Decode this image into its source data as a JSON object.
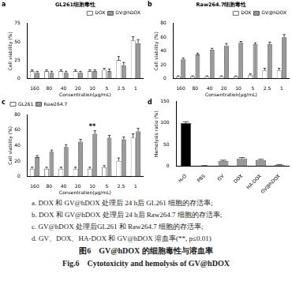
{
  "chart_data": [
    {
      "type": "bar",
      "panel": "a",
      "title": "GL261细胞毒性",
      "categories": [
        "160",
        "80",
        "40",
        "20",
        "10",
        "5",
        "2.5",
        "1"
      ],
      "series": [
        {
          "name": "DOX",
          "color": "#ffffff",
          "values": [
            10,
            10,
            10,
            10,
            10,
            12,
            25,
            52
          ],
          "errors": [
            2,
            2,
            2,
            2,
            2,
            2,
            5,
            5
          ]
        },
        {
          "name": "GV@hDOX",
          "color": "#9a9a9a",
          "values": [
            8,
            8,
            8,
            8,
            10,
            10,
            18,
            48
          ],
          "errors": [
            2,
            2,
            2,
            2,
            2,
            3,
            4,
            5
          ]
        }
      ],
      "x_label": "Consentration(μg/mL)",
      "y_label": "Cell viability (%)",
      "ylim": [
        0,
        75
      ],
      "yticks": [
        0,
        25,
        50,
        75
      ],
      "legend": "top-right",
      "grid": false
    },
    {
      "type": "bar",
      "panel": "b",
      "title": "Raw264.7细胞毒性",
      "categories": [
        "160",
        "80",
        "40",
        "20",
        "10",
        "5",
        "2.5",
        "1"
      ],
      "series": [
        {
          "name": "DOX",
          "color": "#ffffff",
          "values": [
            3,
            3,
            3,
            3,
            3,
            5,
            12,
            12
          ],
          "errors": [
            1,
            1,
            1,
            1,
            1,
            2,
            3,
            3
          ]
        },
        {
          "name": "GV@hDOX",
          "color": "#9a9a9a",
          "values": [
            28,
            35,
            42,
            48,
            52,
            50,
            50,
            60
          ],
          "errors": [
            2,
            2,
            2,
            3,
            2,
            2,
            3,
            4
          ]
        }
      ],
      "x_label": "Consentration(μg/mL)",
      "y_label": "Cell viability (%)",
      "ylim": [
        0,
        80
      ],
      "yticks": [
        0,
        20,
        40,
        60,
        80
      ],
      "legend": "top-right",
      "grid": false
    },
    {
      "type": "bar",
      "panel": "c",
      "categories": [
        "160",
        "80",
        "40",
        "20",
        "10",
        "5",
        "2.5",
        "1"
      ],
      "series": [
        {
          "name": "GL261",
          "color": "#ffffff",
          "values": [
            10,
            10,
            10,
            10,
            10,
            12,
            20,
            50
          ],
          "errors": [
            2,
            2,
            2,
            2,
            2,
            2,
            4,
            5
          ]
        },
        {
          "name": "Raw264.7",
          "color": "#9a9a9a",
          "values": [
            25,
            32,
            38,
            45,
            55,
            50,
            48,
            58
          ],
          "errors": [
            2,
            2,
            3,
            3,
            4,
            3,
            3,
            4
          ]
        }
      ],
      "x_label": "Consentration(μg/mL)",
      "y_label": "Cell viability (%)",
      "ylim": [
        0,
        80
      ],
      "yticks": [
        0,
        20,
        40,
        60,
        80
      ],
      "legend": "top-left",
      "grid": false,
      "annotations": [
        {
          "text": "**",
          "category": "10"
        }
      ]
    },
    {
      "type": "bar",
      "panel": "d",
      "categories": [
        "H₂O",
        "PBS",
        "GV",
        "DOX",
        "HA-DOX",
        "GV@hDOX"
      ],
      "values": [
        100,
        1,
        12,
        18,
        14,
        3
      ],
      "errors": [
        3,
        0.5,
        2,
        2,
        2,
        1
      ],
      "colors": [
        "#000000",
        "#9a9a9a",
        "#9a9a9a",
        "#9a9a9a",
        "#9a9a9a",
        "#9a9a9a"
      ],
      "y_label": "Hemolysis ratio (%)",
      "ylim": [
        0,
        150
      ],
      "yticks": [
        0,
        50,
        100,
        150
      ],
      "grid": false
    }
  ],
  "caption": {
    "lines": [
      "a. DOX 和 GV@hDOX 处理后 24 h后 GL261 细胞的存活率;",
      "b. DOX 和 GV@hDOX 处理后 24 h后 Raw264.7 细胞的存活率;",
      "c. GV@hDOX 处理后GL261 和 Raw264.7 细胞的存活率;",
      "d. GV、DOX、HA-DOX 和 GV@hDOX 溶血率(**, p≤0.01)"
    ],
    "title_cn": "图6　GV@hDOX 的细胞毒性与溶血率",
    "title_en": "Fig.6　Cytotoxicity and hemolysis of GV@hDOX"
  }
}
